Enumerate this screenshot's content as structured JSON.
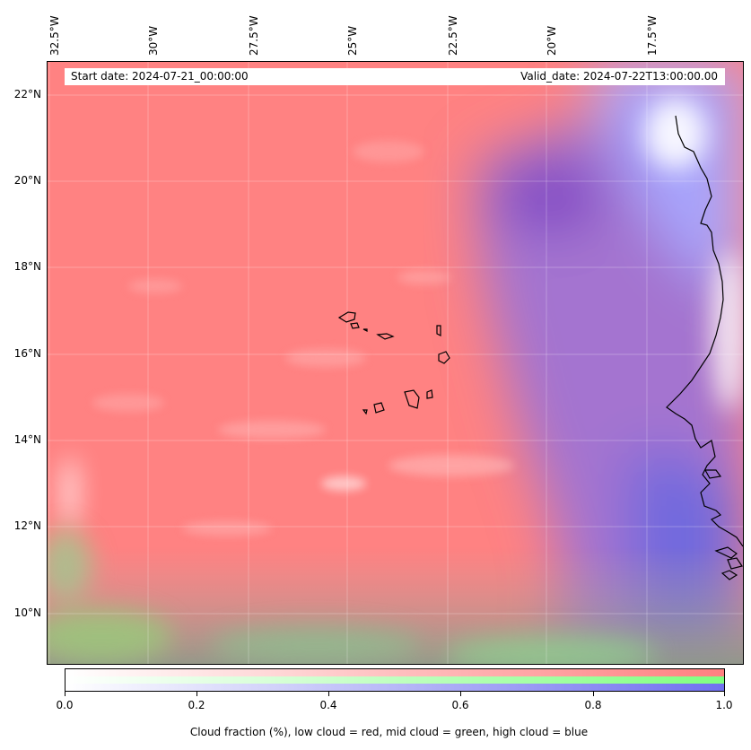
{
  "map": {
    "info": {
      "start_date": "Start date: 2024-07-21_00:00:00",
      "valid_date": "Valid_date: 2024-07-22T13:00:00.00"
    },
    "longitude_labels": [
      "32.5°W",
      "30°W",
      "27.5°W",
      "25°W",
      "22.5°W",
      "20°W",
      "17.5°W"
    ],
    "latitude_labels": [
      "22°N",
      "20°N",
      "18°N",
      "16°N",
      "14°N",
      "12°N",
      "10°N"
    ],
    "colors": {
      "low_cloud": "#ff8080",
      "mid_cloud": "#80ff80",
      "high_cloud": "#7070f0",
      "coastline": "#000000"
    }
  },
  "colorbar": {
    "ticks": [
      "0.0",
      "0.2",
      "0.4",
      "0.6",
      "0.8",
      "1.0"
    ],
    "label": "Cloud fraction (%), low cloud = red, mid cloud = green, high cloud = blue"
  }
}
